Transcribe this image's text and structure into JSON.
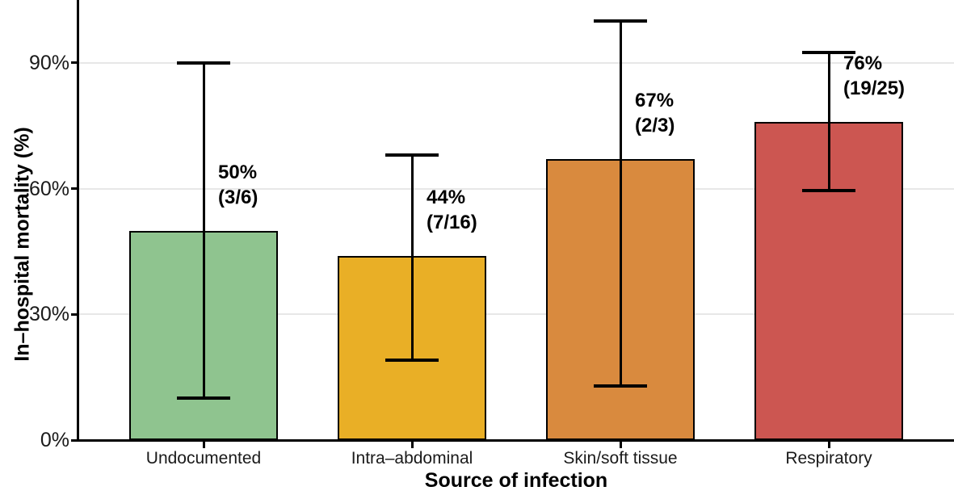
{
  "chart_data": {
    "type": "bar",
    "title": "",
    "xlabel": "Source of infection",
    "ylabel": "In–hospital mortality (%)",
    "ylim": [
      0,
      105
    ],
    "grid": "horizontal-light-gray",
    "legend": "none",
    "yticks": [
      {
        "value": 0,
        "label": "0%"
      },
      {
        "value": 30,
        "label": "30%"
      },
      {
        "value": 60,
        "label": "60%"
      },
      {
        "value": 90,
        "label": "90%"
      }
    ],
    "bars": [
      {
        "category": "Undocumented",
        "value_pct": 50,
        "value_label": "50%",
        "fraction_label": "(3/6)",
        "numerator": 3,
        "denominator": 6,
        "ci_low": 10,
        "ci_high": 90,
        "color": "#8FC48F"
      },
      {
        "category": "Intra–abdominal",
        "value_pct": 44,
        "value_label": "44%",
        "fraction_label": "(7/16)",
        "numerator": 7,
        "denominator": 16,
        "ci_low": 19,
        "ci_high": 68,
        "color": "#E9AF26"
      },
      {
        "category": "Skin/soft tissue",
        "value_pct": 67,
        "value_label": "67%",
        "fraction_label": "(2/3)",
        "numerator": 2,
        "denominator": 3,
        "ci_low": 13,
        "ci_high": 100,
        "color": "#D98A3E"
      },
      {
        "category": "Respiratory",
        "value_pct": 76,
        "value_label": "76%",
        "fraction_label": "(19/25)",
        "numerator": 19,
        "denominator": 25,
        "ci_low": 59.5,
        "ci_high": 92.5,
        "color": "#CC5651"
      }
    ],
    "colors": {
      "axis": "#000000",
      "grid": "#E7E7E7",
      "bar_outline": "#000000",
      "error_bar": "#000000",
      "tick_label": "#1A1A1A",
      "annotation": "#000000",
      "background": "#FFFFFF"
    }
  }
}
